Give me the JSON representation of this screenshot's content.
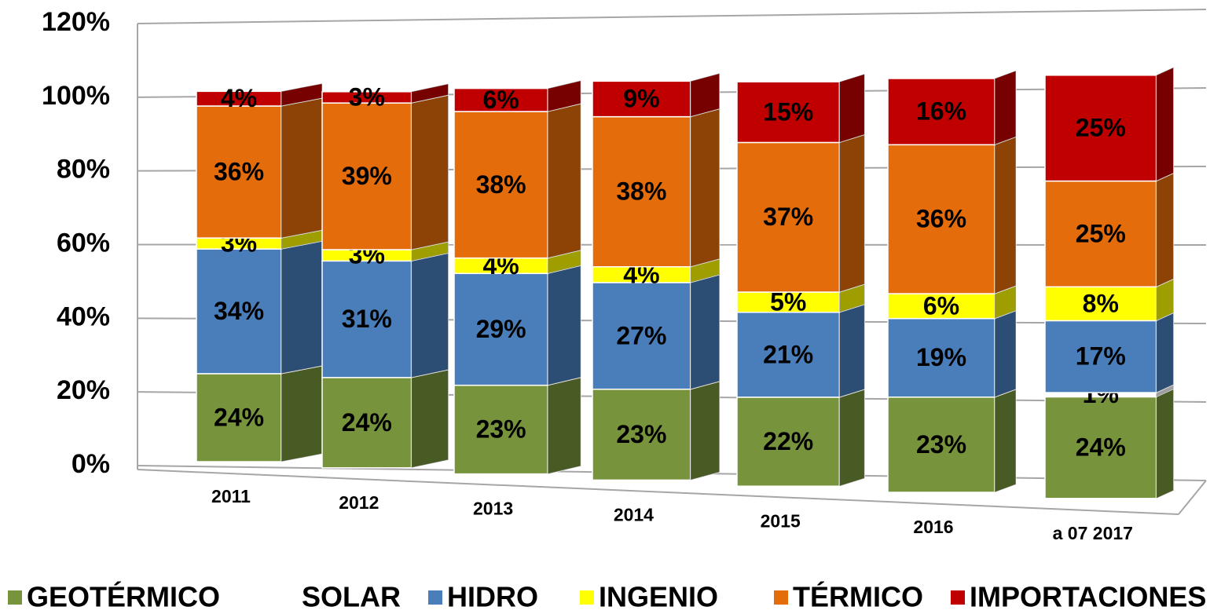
{
  "chart_data": {
    "type": "bar3d_stacked",
    "categories": [
      "2011",
      "2012",
      "2013",
      "2014",
      "2015",
      "2016",
      "a 07 2017"
    ],
    "series": [
      {
        "name": "GEOTÉRMICO",
        "color": "#77933c",
        "values": [
          24,
          24,
          23,
          23,
          22,
          23,
          24
        ],
        "value_labels": [
          "24%",
          "24%",
          "23%",
          "23%",
          "22%",
          "23%",
          "24%"
        ]
      },
      {
        "name": "SOLAR",
        "color": "#ffffff",
        "values": [
          0,
          0,
          0,
          0,
          0,
          0,
          1
        ],
        "value_labels": [
          null,
          null,
          null,
          null,
          null,
          null,
          "1%"
        ]
      },
      {
        "name": "HIDRO",
        "color": "#4a7ebb",
        "values": [
          34,
          31,
          29,
          27,
          21,
          19,
          17
        ],
        "value_labels": [
          "34%",
          "31%",
          "29%",
          "27%",
          "21%",
          "19%",
          "17%"
        ]
      },
      {
        "name": "INGENIO",
        "color": "#ffff00",
        "values": [
          3,
          3,
          4,
          4,
          5,
          6,
          8
        ],
        "value_labels": [
          "3%",
          "3%",
          "4%",
          "4%",
          "5%",
          "6%",
          "8%"
        ]
      },
      {
        "name": "TÉRMICO",
        "color": "#e46c0a",
        "values": [
          36,
          39,
          38,
          38,
          37,
          36,
          25
        ],
        "value_labels": [
          "36%",
          "39%",
          "38%",
          "38%",
          "37%",
          "36%",
          "25%"
        ]
      },
      {
        "name": "IMPORTACIONES",
        "color": "#c00000",
        "values": [
          4,
          3,
          6,
          9,
          15,
          16,
          25
        ],
        "value_labels": [
          "4%",
          "3%",
          "6%",
          "9%",
          "15%",
          "16%",
          "25%"
        ]
      }
    ],
    "ylim": [
      0,
      120
    ],
    "yticks": [
      {
        "value": 0,
        "label": "0%"
      },
      {
        "value": 20,
        "label": "20%"
      },
      {
        "value": 40,
        "label": "40%"
      },
      {
        "value": 60,
        "label": "60%"
      },
      {
        "value": 80,
        "label": "80%"
      },
      {
        "value": 100,
        "label": "100%"
      },
      {
        "value": 120,
        "label": "120%"
      }
    ],
    "grid": true
  }
}
